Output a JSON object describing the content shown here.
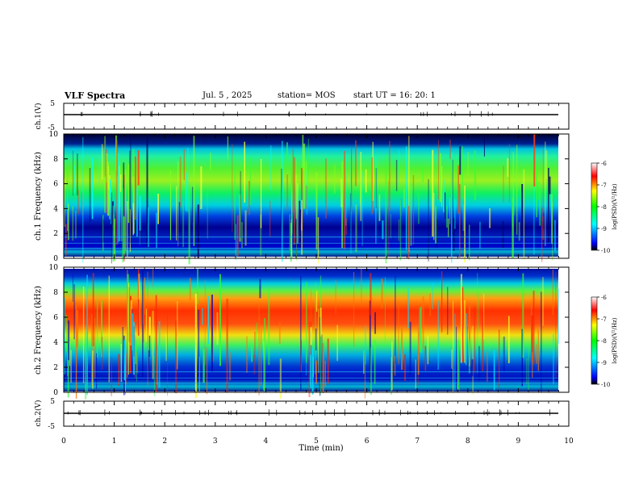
{
  "header": {
    "title": "VLF Spectra",
    "date": "Jul. 5 , 2025",
    "station": "station= MOS",
    "start": "start UT =  16: 20: 1"
  },
  "chart_data": [
    {
      "type": "line",
      "panel": "ch1-waveform",
      "ylabel": "ch.1(V)",
      "yticks": [
        "5",
        "-5"
      ],
      "ylim": [
        -5,
        5
      ],
      "x": [
        0,
        10
      ],
      "values": [
        0,
        0
      ],
      "xlim": [
        0,
        10
      ]
    },
    {
      "type": "heatmap",
      "panel": "ch1-spectrogram",
      "ylabel": "ch.1 Frequency (kHz)",
      "yticks": [
        "0",
        "2",
        "4",
        "6",
        "8",
        "10"
      ],
      "ylim": [
        0,
        10
      ],
      "xlim": [
        0,
        9.85
      ],
      "z_range": [
        -10,
        -6
      ],
      "dominant_band_khz": [
        4.5,
        9.5
      ],
      "colorbar": {
        "label": "log(PSD)(V²/Hz)",
        "ticks": [
          "-6",
          "-7",
          "-8",
          "-9",
          "-10"
        ]
      }
    },
    {
      "type": "heatmap",
      "panel": "ch2-spectrogram",
      "ylabel": "ch.2 Frequency (kHz)",
      "yticks": [
        "0",
        "2",
        "4",
        "6",
        "8",
        "10"
      ],
      "ylim": [
        0,
        10
      ],
      "xlim": [
        0,
        9.85
      ],
      "z_range": [
        -10,
        -6
      ],
      "dominant_band_khz": [
        4.0,
        8.5
      ],
      "colorbar": {
        "label": "log(PSD)(V²/Hz)",
        "ticks": [
          "-6",
          "-7",
          "-8",
          "-9",
          "-10"
        ]
      }
    },
    {
      "type": "line",
      "panel": "ch2-waveform",
      "ylabel": "ch.2(V)",
      "yticks": [
        "5",
        "-5"
      ],
      "ylim": [
        -5,
        5
      ],
      "x": [
        0,
        10
      ],
      "values": [
        0,
        0
      ],
      "xlim": [
        0,
        10
      ]
    }
  ],
  "xaxis": {
    "label": "Time (min)",
    "ticks": [
      "0",
      "1",
      "2",
      "3",
      "4",
      "5",
      "6",
      "7",
      "8",
      "9",
      "10"
    ]
  },
  "colors": {
    "axis": "#000000",
    "spectrogram_background": "#000066",
    "colormap": [
      "#00007a",
      "#0000ff",
      "#00ffff",
      "#00ff00",
      "#ffff00",
      "#ff0000",
      "#ffffff"
    ]
  }
}
